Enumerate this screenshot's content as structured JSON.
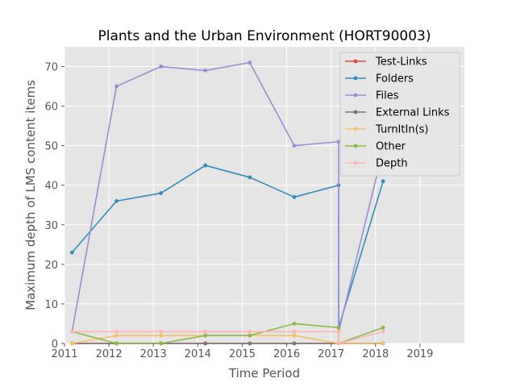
{
  "chart_data": {
    "type": "line",
    "title": "Plants and the Urban Environment (HORT90003)",
    "xlabel": "Time Period",
    "ylabel": "Maximum depth of LMS content items",
    "xlim": [
      2011.0,
      2020.0
    ],
    "ylim": [
      0,
      75
    ],
    "xticks": [
      2011,
      2012,
      2013,
      2014,
      2015,
      2016,
      2017,
      2018,
      2019
    ],
    "yticks": [
      0,
      10,
      20,
      30,
      40,
      50,
      60,
      70
    ],
    "grid": true,
    "legend_position": "top-right",
    "series": [
      {
        "name": "Test-Links",
        "color": "#e24a33",
        "x": [
          2011.17,
          2012.17,
          2013.17,
          2014.17,
          2015.17,
          2016.17,
          2017.17,
          2017.17,
          2018.17
        ],
        "y": [
          0,
          0,
          0,
          0,
          0,
          0,
          0,
          0,
          0
        ]
      },
      {
        "name": "Folders",
        "color": "#348abd",
        "x": [
          2011.17,
          2012.17,
          2013.17,
          2014.17,
          2015.17,
          2016.17,
          2017.17,
          2017.17,
          2018.17
        ],
        "y": [
          23,
          36,
          38,
          45,
          42,
          37,
          40,
          4,
          41
        ]
      },
      {
        "name": "Files",
        "color": "#988ed5",
        "x": [
          2011.17,
          2012.17,
          2013.17,
          2014.17,
          2015.17,
          2016.17,
          2017.17,
          2017.17,
          2018.17
        ],
        "y": [
          3,
          65,
          70,
          69,
          71,
          50,
          51,
          3,
          49
        ]
      },
      {
        "name": "External Links",
        "color": "#777777",
        "x": [
          2011.17,
          2012.17,
          2013.17,
          2014.17,
          2015.17,
          2016.17,
          2017.17,
          2017.17,
          2018.17
        ],
        "y": [
          0,
          0,
          0,
          0,
          0,
          0,
          0,
          0,
          0
        ]
      },
      {
        "name": "TurnItIn(s)",
        "color": "#fbc15e",
        "x": [
          2011.17,
          2012.17,
          2013.17,
          2014.17,
          2015.17,
          2016.17,
          2017.17,
          2017.17,
          2018.17
        ],
        "y": [
          0,
          2,
          2,
          2,
          2,
          2,
          0,
          0,
          0
        ]
      },
      {
        "name": "Other",
        "color": "#8eba42",
        "x": [
          2011.17,
          2012.17,
          2013.17,
          2014.17,
          2015.17,
          2016.17,
          2017.17,
          2017.17,
          2018.17
        ],
        "y": [
          3,
          0,
          0,
          2,
          2,
          5,
          4,
          0,
          4
        ]
      },
      {
        "name": "Depth",
        "color": "#ffb5b8",
        "x": [
          2011.17,
          2012.17,
          2013.17,
          2014.17,
          2015.17,
          2016.17,
          2017.17,
          2017.17,
          2018.17
        ],
        "y": [
          3,
          3,
          3,
          3,
          3,
          3,
          3,
          0,
          3
        ]
      }
    ]
  }
}
